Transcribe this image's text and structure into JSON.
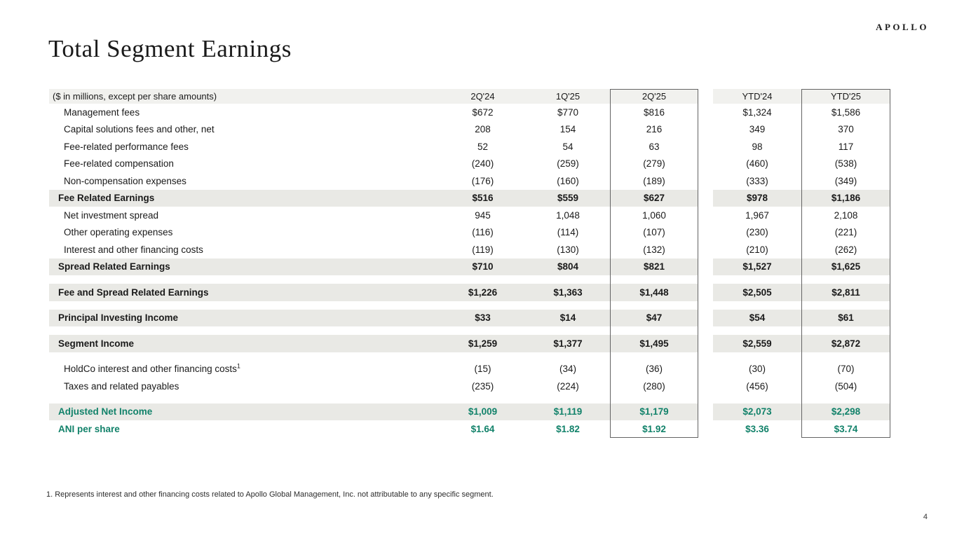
{
  "brand": {
    "logo": "APOLLO"
  },
  "page": {
    "title": "Total Segment Earnings",
    "footnote": "1. Represents interest and other financing costs related to Apollo Global Management, Inc. not attributable to any specific segment.",
    "page_number": "4"
  },
  "colors": {
    "accent_green": "#12826a",
    "band_gray": "#e9e9e5",
    "header_band_gray": "#f1f1ee",
    "box_border_gray": "#646464"
  },
  "table": {
    "unit_label": "($ in millions, except per share amounts)",
    "columns": [
      "2Q'24",
      "1Q'25",
      "2Q'25",
      "YTD'24",
      "YTD'25"
    ],
    "boxed_columns": [
      "2Q'25",
      "YTD'25"
    ],
    "rows": [
      {
        "type": "item",
        "label": "Management fees",
        "values": [
          "$672",
          "$770",
          "$816",
          "$1,324",
          "$1,586"
        ]
      },
      {
        "type": "item",
        "label": "Capital solutions fees and other, net",
        "values": [
          "208",
          "154",
          "216",
          "349",
          "370"
        ]
      },
      {
        "type": "item",
        "label": "Fee-related performance fees",
        "values": [
          "52",
          "54",
          "63",
          "98",
          "117"
        ]
      },
      {
        "type": "item",
        "label": "Fee-related compensation",
        "values": [
          "(240)",
          "(259)",
          "(279)",
          "(460)",
          "(538)"
        ]
      },
      {
        "type": "item",
        "label": "Non-compensation expenses",
        "values": [
          "(176)",
          "(160)",
          "(189)",
          "(333)",
          "(349)"
        ]
      },
      {
        "type": "total",
        "label": "Fee Related Earnings",
        "values": [
          "$516",
          "$559",
          "$627",
          "$978",
          "$1,186"
        ]
      },
      {
        "type": "item",
        "label": "Net investment spread",
        "values": [
          "945",
          "1,048",
          "1,060",
          "1,967",
          "2,108"
        ]
      },
      {
        "type": "item",
        "label": "Other operating expenses",
        "values": [
          "(116)",
          "(114)",
          "(107)",
          "(230)",
          "(221)"
        ]
      },
      {
        "type": "item",
        "label": "Interest and other financing costs",
        "values": [
          "(119)",
          "(130)",
          "(132)",
          "(210)",
          "(262)"
        ]
      },
      {
        "type": "total",
        "label": "Spread Related Earnings",
        "values": [
          "$710",
          "$804",
          "$821",
          "$1,527",
          "$1,625"
        ]
      },
      {
        "type": "spacer"
      },
      {
        "type": "total",
        "label": "Fee and Spread Related Earnings",
        "values": [
          "$1,226",
          "$1,363",
          "$1,448",
          "$2,505",
          "$2,811"
        ]
      },
      {
        "type": "spacer"
      },
      {
        "type": "total",
        "label": "Principal Investing Income",
        "values": [
          "$33",
          "$14",
          "$47",
          "$54",
          "$61"
        ]
      },
      {
        "type": "spacer"
      },
      {
        "type": "total",
        "label": "Segment Income",
        "values": [
          "$1,259",
          "$1,377",
          "$1,495",
          "$2,559",
          "$2,872"
        ]
      },
      {
        "type": "spacer"
      },
      {
        "type": "item",
        "label": "HoldCo interest and other financing costs",
        "sup": "1",
        "values": [
          "(15)",
          "(34)",
          "(36)",
          "(30)",
          "(70)"
        ]
      },
      {
        "type": "item",
        "label": "Taxes and related payables",
        "values": [
          "(235)",
          "(224)",
          "(280)",
          "(456)",
          "(504)"
        ]
      },
      {
        "type": "spacer"
      },
      {
        "type": "total-green",
        "label": "Adjusted Net Income",
        "values": [
          "$1,009",
          "$1,119",
          "$1,179",
          "$2,073",
          "$2,298"
        ]
      },
      {
        "type": "green",
        "label": "ANI per share",
        "values": [
          "$1.64",
          "$1.82",
          "$1.92",
          "$3.36",
          "$3.74"
        ]
      }
    ]
  }
}
